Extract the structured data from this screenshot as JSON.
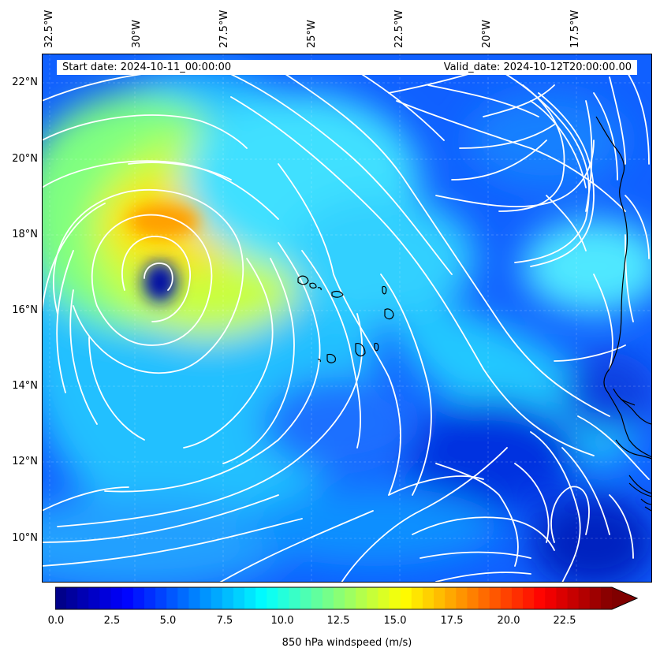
{
  "map": {
    "start_date_label": "Start date: 2024-10-11_00:00:00",
    "valid_date_label": "Valid_date: 2024-10-12T20:00:00.00",
    "lon_labels": [
      "32.5°W",
      "30°W",
      "27.5°W",
      "25°W",
      "22.5°W",
      "20°W",
      "17.5°W"
    ],
    "lat_labels": [
      "22°N",
      "20°N",
      "18°N",
      "16°N",
      "14°N",
      "12°N",
      "10°N"
    ],
    "land_color": "#0000ff",
    "streamline_color": "#ffffff",
    "coastline_color": "#000000"
  },
  "colorbar": {
    "ticks": [
      "0.0",
      "2.5",
      "5.0",
      "7.5",
      "10.0",
      "12.5",
      "15.0",
      "17.5",
      "20.0",
      "22.5"
    ],
    "label": "850 hPa windspeed (m/s)",
    "vmin": 0,
    "vmax": 25,
    "extend": "max",
    "colormap": "jet"
  }
}
